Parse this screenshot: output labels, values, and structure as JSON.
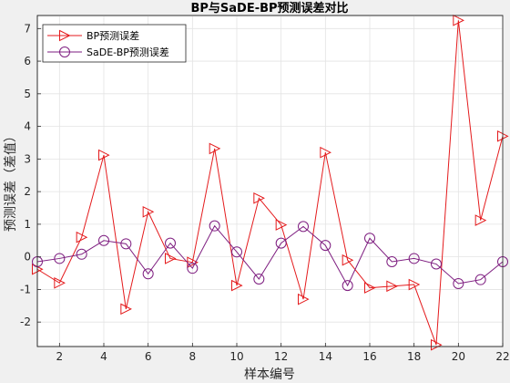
{
  "chart_data": {
    "type": "line",
    "title": "BP与SaDE-BP预测误差对比",
    "xlabel": "样本编号",
    "ylabel": "预测误差（差值）",
    "xlim": [
      1,
      22
    ],
    "ylim": [
      -2.75,
      7.4
    ],
    "xticks": [
      2,
      4,
      6,
      8,
      10,
      12,
      14,
      16,
      18,
      20,
      22
    ],
    "yticks": [
      -2,
      -1,
      0,
      1,
      2,
      3,
      4,
      5,
      6,
      7
    ],
    "grid": true,
    "legend_position": "top-left",
    "x": [
      1,
      2,
      3,
      4,
      5,
      6,
      7,
      8,
      9,
      10,
      11,
      12,
      13,
      14,
      15,
      16,
      17,
      18,
      19,
      20,
      21,
      22
    ],
    "series": [
      {
        "name": "BP预测误差",
        "color": "#e41a1c",
        "marker": "triangle-right",
        "values": [
          -0.38,
          -0.8,
          0.6,
          3.12,
          -1.6,
          1.38,
          -0.05,
          -0.17,
          3.32,
          -0.88,
          1.8,
          0.98,
          -1.3,
          3.2,
          -0.1,
          -0.95,
          -0.9,
          -0.85,
          -2.7,
          7.25,
          1.12,
          3.7
        ]
      },
      {
        "name": "SaDE-BP预测误差",
        "color": "#7e1e80",
        "marker": "circle",
        "values": [
          -0.15,
          -0.05,
          0.08,
          0.5,
          0.4,
          -0.52,
          0.42,
          -0.35,
          0.95,
          0.15,
          -0.68,
          0.42,
          0.93,
          0.35,
          -0.88,
          0.57,
          -0.15,
          -0.05,
          -0.22,
          -0.82,
          -0.7,
          -0.15
        ]
      }
    ]
  }
}
